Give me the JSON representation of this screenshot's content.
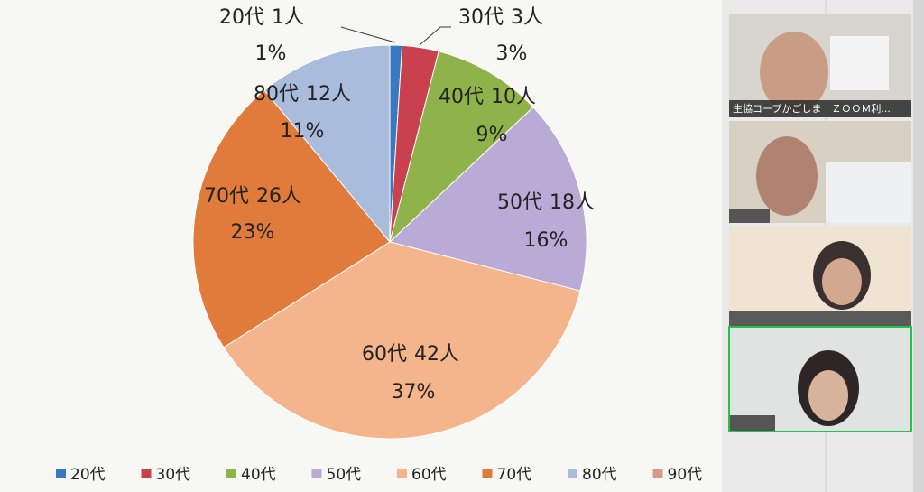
{
  "chart_data": {
    "type": "pie",
    "categories": [
      "20代",
      "30代",
      "40代",
      "50代",
      "60代",
      "70代",
      "80代",
      "90代"
    ],
    "values": [
      1,
      3,
      9,
      16,
      37,
      23,
      11,
      null
    ],
    "value_labels": [
      "1%",
      "3%",
      "9%",
      "16%",
      "37%",
      "23%",
      "11%",
      null
    ],
    "counts": [
      1,
      3,
      10,
      18,
      42,
      26,
      12,
      null
    ],
    "count_labels": [
      "1人",
      "3人",
      "10人",
      "18人",
      "42人",
      "26人",
      "12人",
      null
    ],
    "colors": [
      "#3a78c0",
      "#c9404f",
      "#8fb34a",
      "#b9aad6",
      "#f4b48c",
      "#e07b3c",
      "#a9bcdc",
      "#d99a8a"
    ],
    "legend": "bottom"
  },
  "video_tiles": [
    {
      "name": "生協コープかごしま　ＺＯＯＭ利..."
    }
  ]
}
